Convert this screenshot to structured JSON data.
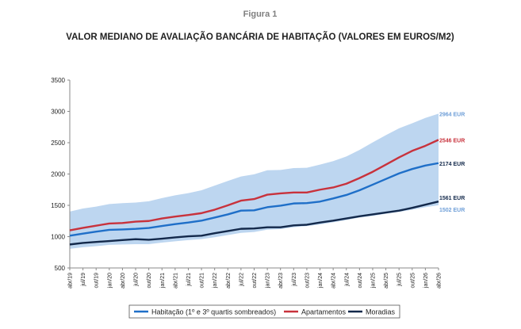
{
  "figure_label": "Figura 1",
  "chart_data": {
    "type": "line",
    "title": "VALOR MEDIANO DE AVALIAÇÃO BANCÁRIA DE HABITAÇÃO (VALORES EM EUROS/M2)",
    "xlabel": "",
    "ylabel": "",
    "ylim": [
      500,
      3500
    ],
    "yticks": [
      500,
      1000,
      1500,
      2000,
      2500,
      3000,
      3500
    ],
    "grid": false,
    "legend_position": "bottom",
    "x": [
      "abr/19",
      "jul/19",
      "out/19",
      "jan/20",
      "abr/20",
      "jul/20",
      "out/20",
      "jan/21",
      "abr/21",
      "jul/21",
      "out/21",
      "jan/22",
      "abr/22",
      "jul/22",
      "out/22",
      "jan/23",
      "abr/23",
      "jul/23",
      "out/23",
      "jan/24",
      "abr/24",
      "jul/24",
      "out/24",
      "jan/25",
      "abr/25",
      "jul/25",
      "out/25",
      "jan/26",
      "abr/26"
    ],
    "series": [
      {
        "name": "Habitação (1º e 3º quartis sombreados)",
        "color": "#1f6fc8",
        "values": [
          1015,
          1048,
          1080,
          1108,
          1115,
          1124,
          1138,
          1170,
          1200,
          1225,
          1255,
          1305,
          1355,
          1415,
          1420,
          1470,
          1495,
          1530,
          1535,
          1560,
          1610,
          1665,
          1740,
          1830,
          1920,
          2010,
          2080,
          2135,
          2174
        ]
      },
      {
        "name": "Apartamentos",
        "color": "#c8323c",
        "values": [
          1100,
          1140,
          1175,
          1210,
          1218,
          1240,
          1250,
          1290,
          1320,
          1345,
          1375,
          1430,
          1500,
          1575,
          1600,
          1670,
          1690,
          1705,
          1705,
          1750,
          1785,
          1845,
          1935,
          2035,
          2150,
          2265,
          2370,
          2450,
          2546
        ]
      },
      {
        "name": "Moradias",
        "color": "#13294b",
        "values": [
          875,
          900,
          915,
          930,
          945,
          960,
          950,
          968,
          988,
          1005,
          1015,
          1055,
          1090,
          1125,
          1130,
          1150,
          1150,
          1180,
          1190,
          1225,
          1255,
          1290,
          1325,
          1355,
          1385,
          1415,
          1460,
          1510,
          1561
        ]
      }
    ],
    "band": {
      "color": "#bdd6f0",
      "lower": [
        805,
        830,
        848,
        868,
        875,
        880,
        880,
        905,
        925,
        945,
        960,
        990,
        1025,
        1060,
        1075,
        1110,
        1120,
        1150,
        1170,
        1195,
        1230,
        1265,
        1305,
        1330,
        1365,
        1395,
        1430,
        1470,
        1502
      ],
      "upper": [
        1400,
        1450,
        1480,
        1520,
        1535,
        1545,
        1565,
        1615,
        1660,
        1695,
        1740,
        1815,
        1890,
        1960,
        1995,
        2060,
        2065,
        2095,
        2100,
        2150,
        2205,
        2280,
        2385,
        2505,
        2620,
        2730,
        2810,
        2895,
        2964
      ]
    },
    "end_labels": [
      {
        "text": "2964 EUR",
        "color": "#6f9fd8"
      },
      {
        "text": "2546 EUR",
        "color": "#c8323c"
      },
      {
        "text": "2174 EUR",
        "color": "#13294b"
      },
      {
        "text": "1561 EUR",
        "color": "#13294b"
      },
      {
        "text": "1502 EUR",
        "color": "#6f9fd8"
      }
    ]
  }
}
